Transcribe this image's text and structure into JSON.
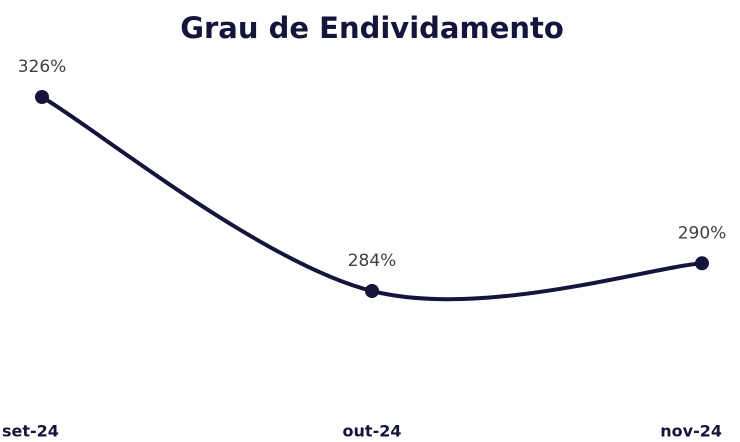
{
  "chart_data": {
    "type": "line",
    "title": "Grau de Endividamento",
    "categories": [
      "set-24",
      "out-24",
      "nov-24"
    ],
    "series": [
      {
        "name": "Grau de Endividamento",
        "color": "#14143c",
        "values": [
          326,
          284,
          290
        ],
        "value_labels": [
          "326%",
          "284%",
          "290%"
        ]
      }
    ]
  }
}
